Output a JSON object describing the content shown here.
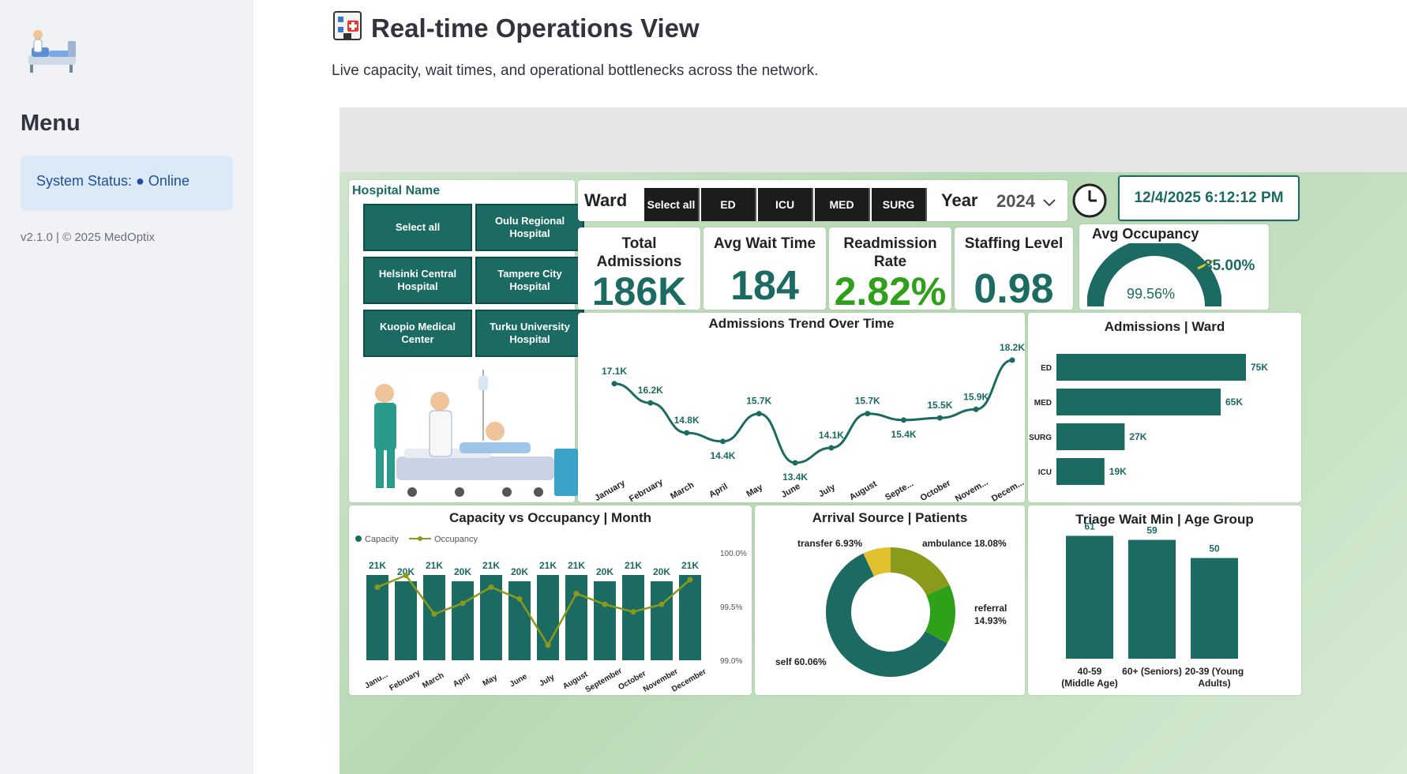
{
  "sidebar": {
    "menu_title": "Menu",
    "status_label": "System Status: ● Online",
    "version": "v2.1.0 | © 2025 MedOptix"
  },
  "page": {
    "title": "Real-time Operations View",
    "subtitle": "Live capacity, wait times, and operational bottlenecks across the network."
  },
  "filters": {
    "hospital_title": "Hospital Name",
    "hospitals": [
      "Select all",
      "Oulu Regional Hospital",
      "Helsinki Central Hospital",
      "Tampere City Hospital",
      "Kuopio Medical Center",
      "Turku University Hospital"
    ],
    "ward_label": "Ward",
    "wards": [
      "Select all",
      "ED",
      "ICU",
      "MED",
      "SURG"
    ],
    "year_label": "Year",
    "year_value": "2024",
    "datetime": "12/4/2025 6:12:12 PM"
  },
  "kpis": {
    "total_admissions_title": "Total Admissions",
    "total_admissions": "186K",
    "avg_wait_title": "Avg Wait Time",
    "avg_wait": "184",
    "readmission_title": "Readmission Rate",
    "readmission": "2.82%",
    "staffing_title": "Staffing Level",
    "staffing": "0.98",
    "occupancy_title": "Avg Occupancy",
    "occupancy_value": "99.56%",
    "occupancy_target": "85.00%"
  },
  "colors": {
    "teal": "#1b6b63",
    "olive": "#8b9a1a",
    "green": "#2ea01a",
    "yellow": "#e2c12e",
    "readmission": "#2ea01a"
  },
  "chart_data": [
    {
      "type": "line",
      "title": "Admissions Trend Over Time",
      "categories": [
        "January",
        "February",
        "March",
        "April",
        "May",
        "June",
        "July",
        "August",
        "Septe...",
        "October",
        "Novem...",
        "Decem..."
      ],
      "values": [
        17.1,
        16.2,
        14.8,
        14.4,
        15.7,
        13.4,
        14.1,
        15.7,
        15.4,
        15.5,
        15.9,
        18.2
      ],
      "labels": [
        "17.1K",
        "16.2K",
        "14.8K",
        "14.4K",
        "15.7K",
        "13.4K",
        "14.1K",
        "15.7K",
        "15.4K",
        "15.5K",
        "15.9K",
        "18.2K"
      ]
    },
    {
      "type": "bar",
      "title": "Admissions | Ward",
      "categories": [
        "ED",
        "MED",
        "SURG",
        "ICU"
      ],
      "values": [
        75,
        65,
        27,
        19
      ],
      "labels": [
        "75K",
        "65K",
        "27K",
        "19K"
      ]
    },
    {
      "type": "bar",
      "title": "Capacity vs Occupancy | Month",
      "categories": [
        "Janu...",
        "February",
        "March",
        "April",
        "May",
        "June",
        "July",
        "August",
        "September",
        "October",
        "November",
        "December"
      ],
      "series": [
        {
          "name": "Capacity",
          "values": [
            21,
            20,
            21,
            20,
            21,
            20,
            21,
            21,
            20,
            21,
            20,
            21
          ],
          "labels": [
            "21K",
            "20K",
            "21K",
            "20K",
            "21K",
            "20K",
            "21K",
            "21K",
            "20K",
            "21K",
            "20K",
            "21K"
          ]
        },
        {
          "name": "Occupancy",
          "values": [
            99.71,
            99.82,
            99.46,
            99.56,
            99.71,
            99.6,
            99.17,
            99.65,
            99.55,
            99.48,
            99.55,
            99.78
          ]
        }
      ],
      "y2_ticks": [
        "100.0%",
        "99.5%",
        "99.0%"
      ]
    },
    {
      "type": "pie",
      "title": "Arrival Source | Patients",
      "categories": [
        "self",
        "ambulance",
        "referral",
        "transfer"
      ],
      "values": [
        60.06,
        18.08,
        14.93,
        6.93
      ],
      "labels": [
        "self 60.06%",
        "ambulance 18.08%",
        "referral 14.93%",
        "transfer 6.93%"
      ]
    },
    {
      "type": "bar",
      "title": "Triage Wait Min | Age Group",
      "categories": [
        "40-59 (Middle Age)",
        "60+ (Seniors)",
        "20-39 (Young Adults)"
      ],
      "values": [
        61,
        59,
        50
      ]
    }
  ]
}
